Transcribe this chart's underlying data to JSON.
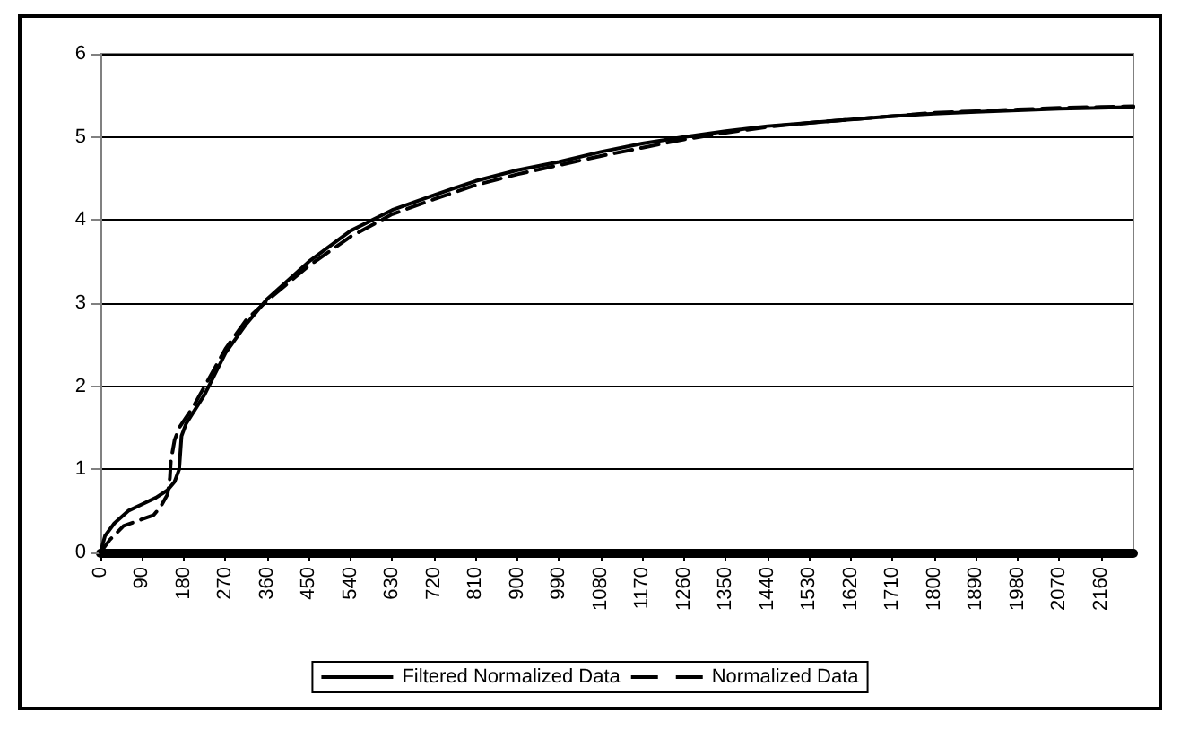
{
  "chart_data": {
    "type": "line",
    "series": [
      {
        "name": "Filtered Normalized Data",
        "color": "#000000",
        "line_style": "solid",
        "x": [
          0,
          10,
          30,
          60,
          90,
          120,
          145,
          160,
          170,
          175,
          185,
          225,
          270,
          315,
          360,
          450,
          540,
          630,
          720,
          810,
          900,
          990,
          1080,
          1170,
          1260,
          1350,
          1440,
          1530,
          1620,
          1710,
          1800,
          1890,
          1980,
          2070,
          2160,
          2230
        ],
        "values": [
          0,
          0.2,
          0.35,
          0.5,
          0.58,
          0.66,
          0.75,
          0.85,
          1.0,
          1.4,
          1.55,
          1.9,
          2.4,
          2.75,
          3.05,
          3.5,
          3.87,
          4.12,
          4.3,
          4.47,
          4.6,
          4.7,
          4.82,
          4.92,
          5.0,
          5.07,
          5.13,
          5.17,
          5.21,
          5.25,
          5.28,
          5.3,
          5.32,
          5.34,
          5.35,
          5.36
        ]
      },
      {
        "name": "Normalized Data",
        "color": "#000000",
        "line_style": "dashed",
        "x": [
          0,
          20,
          50,
          90,
          115,
          130,
          145,
          150,
          152,
          160,
          170,
          200,
          230,
          270,
          315,
          360,
          450,
          540,
          630,
          720,
          810,
          900,
          990,
          1080,
          1170,
          1260,
          1350,
          1440,
          1530,
          1620,
          1710,
          1800,
          1890,
          1980,
          2070,
          2160,
          2230
        ],
        "values": [
          0,
          0.15,
          0.32,
          0.4,
          0.45,
          0.55,
          0.7,
          0.9,
          1.1,
          1.35,
          1.5,
          1.75,
          2.05,
          2.45,
          2.8,
          3.03,
          3.45,
          3.8,
          4.07,
          4.25,
          4.42,
          4.55,
          4.66,
          4.77,
          4.87,
          4.97,
          5.05,
          5.12,
          5.17,
          5.21,
          5.25,
          5.29,
          5.31,
          5.33,
          5.35,
          5.36,
          5.37
        ]
      }
    ],
    "xlim": [
      0,
      2230
    ],
    "xticks": [
      0,
      90,
      180,
      270,
      360,
      450,
      540,
      630,
      720,
      810,
      900,
      990,
      1080,
      1170,
      1260,
      1350,
      1440,
      1530,
      1620,
      1710,
      1800,
      1890,
      1980,
      2070,
      2160
    ],
    "ylim": [
      0,
      6
    ],
    "yticks": [
      0,
      1,
      2,
      3,
      4,
      5,
      6
    ],
    "grid": "y",
    "legend": "bottom",
    "marker": "none"
  }
}
